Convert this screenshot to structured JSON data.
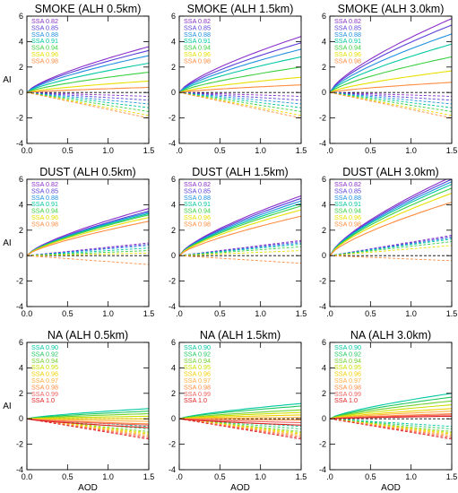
{
  "figure": {
    "ylabel": "AI",
    "xlabel": "AOD"
  },
  "chart_data": [
    {
      "type": "line",
      "row": 0,
      "col": 0,
      "title": "SMOKE (ALH 0.5km)",
      "xlim": [
        0,
        1.5
      ],
      "ylim": [
        -4,
        6
      ],
      "xticks": [
        "0.0",
        "0.5",
        "1.0",
        "1.5"
      ],
      "yticks": [
        "-4",
        "-2",
        "0",
        "2",
        "4",
        "6"
      ],
      "legend": [
        "SSA 0.82",
        "SSA 0.85",
        "SSA 0.88",
        "SSA 0.91",
        "SSA 0.94",
        "SSA 0.96",
        "SSA 0.98"
      ],
      "colors": [
        "#8b2fc9",
        "#5a3fd8",
        "#1f8fe0",
        "#00c8a0",
        "#3ad040",
        "#e8e000",
        "#ff8c40"
      ],
      "solid_end": [
        3.6,
        3.3,
        2.9,
        2.3,
        1.6,
        0.9,
        0.4
      ],
      "dashed_end": [
        -0.3,
        -0.6,
        -0.9,
        -1.2,
        -1.5,
        -1.8,
        -2.0
      ]
    },
    {
      "type": "line",
      "row": 0,
      "col": 1,
      "title": "SMOKE (ALH 1.5km)",
      "xlim": [
        0,
        1.5
      ],
      "ylim": [
        -4,
        6
      ],
      "xticks": [
        ".0",
        "0.5",
        "1.0",
        "1.5"
      ],
      "yticks": [
        "-4",
        "-2",
        "0",
        "2",
        "4",
        "6"
      ],
      "legend": [
        "SSA 0.82",
        "SSA 0.85",
        "SSA 0.88",
        "SSA 0.91",
        "SSA 0.94",
        "SSA 0.96",
        "SSA 0.98"
      ],
      "colors": [
        "#8b2fc9",
        "#5a3fd8",
        "#1f8fe0",
        "#00c8a0",
        "#3ad040",
        "#e8e000",
        "#ff8c40"
      ],
      "solid_end": [
        4.4,
        3.9,
        3.4,
        2.8,
        2.0,
        1.2,
        0.6
      ],
      "dashed_end": [
        -0.3,
        -0.6,
        -0.9,
        -1.2,
        -1.5,
        -1.8,
        -2.0
      ]
    },
    {
      "type": "line",
      "row": 0,
      "col": 2,
      "title": "SMOKE (ALH 3.0km)",
      "xlim": [
        0,
        1.5
      ],
      "ylim": [
        -4,
        6
      ],
      "xticks": [
        ".0",
        "0.5",
        "1.0",
        "1.5"
      ],
      "yticks": [
        "-4",
        "-2",
        "0",
        "2",
        "4",
        "6"
      ],
      "legend": [
        "SSA 0.82",
        "SSA 0.85",
        "SSA 0.88",
        "SSA 0.91",
        "SSA 0.94",
        "SSA 0.96",
        "SSA 0.98"
      ],
      "colors": [
        "#8b2fc9",
        "#5a3fd8",
        "#1f8fe0",
        "#00c8a0",
        "#3ad040",
        "#e8e000",
        "#ff8c40"
      ],
      "solid_end": [
        5.8,
        5.3,
        4.6,
        3.8,
        2.8,
        1.7,
        0.8
      ],
      "dashed_end": [
        -0.3,
        -0.6,
        -0.9,
        -1.2,
        -1.5,
        -1.8,
        -2.0
      ]
    },
    {
      "type": "line",
      "row": 1,
      "col": 0,
      "title": "DUST (ALH 0.5km)",
      "xlim": [
        0,
        1.5
      ],
      "ylim": [
        -4,
        6
      ],
      "xticks": [
        "0.0",
        "0.5",
        "1.0",
        "1.5"
      ],
      "yticks": [
        "-4",
        "-2",
        "0",
        "2",
        "4",
        "6"
      ],
      "legend": [
        "SSA 0.82",
        "SSA 0.85",
        "SSA 0.88",
        "SSA 0.91",
        "SSA 0.94",
        "SSA 0.96",
        "SSA 0.98"
      ],
      "colors": [
        "#8b2fc9",
        "#5a3fd8",
        "#1f8fe0",
        "#00c8a0",
        "#3ad040",
        "#e8e000",
        "#ff8c40"
      ],
      "solid_end": [
        3.7,
        3.5,
        3.4,
        3.3,
        3.2,
        3.0,
        2.7
      ],
      "dashed_end": [
        1.0,
        0.9,
        0.8,
        0.6,
        0.4,
        0.2,
        -0.7
      ]
    },
    {
      "type": "line",
      "row": 1,
      "col": 1,
      "title": "DUST (ALH 1.5km)",
      "xlim": [
        0,
        1.5
      ],
      "ylim": [
        -4,
        6
      ],
      "xticks": [
        ".0",
        "0.5",
        "1.0",
        "1.5"
      ],
      "yticks": [
        "-4",
        "-2",
        "0",
        "2",
        "4",
        "6"
      ],
      "legend": [
        "SSA 0.82",
        "SSA 0.85",
        "SSA 0.88",
        "SSA 0.91",
        "SSA 0.94",
        "SSA 0.96",
        "SSA 0.98"
      ],
      "colors": [
        "#8b2fc9",
        "#5a3fd8",
        "#1f8fe0",
        "#00c8a0",
        "#3ad040",
        "#e8e000",
        "#ff8c40"
      ],
      "solid_end": [
        4.7,
        4.5,
        4.3,
        4.1,
        3.9,
        3.6,
        3.1
      ],
      "dashed_end": [
        1.2,
        1.1,
        1.0,
        0.9,
        0.7,
        0.4,
        -0.6
      ]
    },
    {
      "type": "line",
      "row": 1,
      "col": 2,
      "title": "DUST (ALH 3.0km)",
      "xlim": [
        0,
        1.5
      ],
      "ylim": [
        -4,
        6
      ],
      "xticks": [
        ".0",
        "0.5",
        "1.0",
        "1.5"
      ],
      "yticks": [
        "-4",
        "-2",
        "0",
        "2",
        "4",
        "6"
      ],
      "legend": [
        "SSA 0.82",
        "SSA 0.85",
        "SSA 0.88",
        "SSA 0.91",
        "SSA 0.94",
        "SSA 0.96",
        "SSA 0.98"
      ],
      "colors": [
        "#8b2fc9",
        "#5a3fd8",
        "#1f8fe0",
        "#00c8a0",
        "#3ad040",
        "#e8e000",
        "#ff8c40"
      ],
      "solid_end": [
        6.2,
        6.0,
        5.8,
        5.6,
        5.3,
        4.9,
        4.2
      ],
      "dashed_end": [
        1.6,
        1.5,
        1.4,
        1.3,
        1.1,
        0.8,
        -0.4
      ]
    },
    {
      "type": "line",
      "row": 2,
      "col": 0,
      "title": "NA (ALH 0.5km)",
      "xlim": [
        0,
        1.5
      ],
      "ylim": [
        -4,
        6
      ],
      "xticks": [
        "0.0",
        "0.5",
        "1.0",
        "1.5"
      ],
      "yticks": [
        "-4",
        "-2",
        "0",
        "2",
        "4",
        "6"
      ],
      "xlabel": "AOD",
      "legend": [
        "SSA 0.90",
        "SSA 0.92",
        "SSA 0.94",
        "SSA 0.95",
        "SSA 0.96",
        "SSA 0.97",
        "SSA 0.98",
        "SSA 0.99",
        "SSA 1.0"
      ],
      "colors": [
        "#00c8a0",
        "#20c860",
        "#70d030",
        "#c8e000",
        "#f0d000",
        "#ffb040",
        "#ff8c40",
        "#f06060",
        "#e02020"
      ],
      "solid_end": [
        0.8,
        0.6,
        0.4,
        0.2,
        0.0,
        -0.2,
        -0.4,
        -0.5,
        -0.7
      ],
      "dashed_end": [
        -0.6,
        -0.8,
        -1.0,
        -1.1,
        -1.2,
        -1.3,
        -1.4,
        -1.5,
        -1.6
      ]
    },
    {
      "type": "line",
      "row": 2,
      "col": 1,
      "title": "NA (ALH 1.5km)",
      "xlim": [
        0,
        1.5
      ],
      "ylim": [
        -4,
        6
      ],
      "xticks": [
        ".0",
        "0.5",
        "1.0",
        "1.5"
      ],
      "yticks": [
        "-4",
        "-2",
        "0",
        "2",
        "4",
        "6"
      ],
      "xlabel": "AOD",
      "legend": [
        "SSA 0.90",
        "SSA 0.92",
        "SSA 0.94",
        "SSA 0.95",
        "SSA 0.96",
        "SSA 0.97",
        "SSA 0.98",
        "SSA 0.99",
        "SSA 1.0"
      ],
      "colors": [
        "#00c8a0",
        "#20c860",
        "#70d030",
        "#c8e000",
        "#f0d000",
        "#ffb040",
        "#ff8c40",
        "#f06060",
        "#e02020"
      ],
      "solid_end": [
        1.2,
        1.0,
        0.7,
        0.5,
        0.3,
        0.1,
        -0.1,
        -0.3,
        -0.5
      ],
      "dashed_end": [
        -0.6,
        -0.8,
        -1.0,
        -1.1,
        -1.2,
        -1.3,
        -1.4,
        -1.5,
        -1.6
      ]
    },
    {
      "type": "line",
      "row": 2,
      "col": 2,
      "title": "NA (ALH 3.0km)",
      "xlim": [
        0,
        1.5
      ],
      "ylim": [
        -4,
        6
      ],
      "xticks": [
        ".0",
        "0.5",
        "1.0",
        "1.5"
      ],
      "yticks": [
        "-4",
        "-2",
        "0",
        "2",
        "4",
        "6"
      ],
      "xlabel": "AOD",
      "legend": [
        "SSA 0.90",
        "SSA 0.92",
        "SSA 0.94",
        "SSA 0.95",
        "SSA 0.96",
        "SSA 0.97",
        "SSA 0.98",
        "SSA 0.99",
        "SSA 1.0"
      ],
      "colors": [
        "#00c8a0",
        "#20c860",
        "#70d030",
        "#c8e000",
        "#f0d000",
        "#ffb040",
        "#ff8c40",
        "#f06060",
        "#e02020"
      ],
      "solid_end": [
        2.0,
        1.7,
        1.4,
        1.1,
        0.8,
        0.6,
        0.4,
        0.3,
        0.2
      ],
      "dashed_end": [
        -0.6,
        -0.8,
        -1.0,
        -1.1,
        -1.2,
        -1.3,
        -1.4,
        -1.5,
        -1.6
      ]
    }
  ]
}
